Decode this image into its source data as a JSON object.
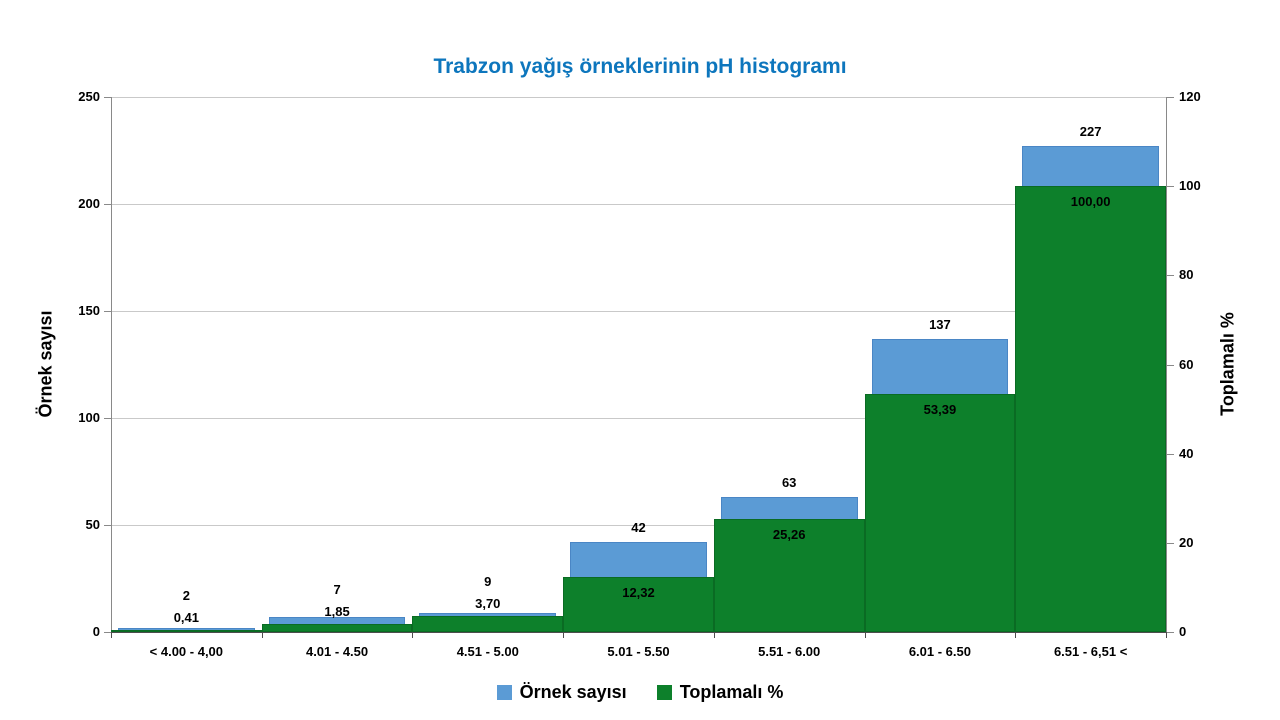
{
  "title": "Trabzon yağış örneklerinin pH histogramı",
  "title_color": "#0D76BD",
  "chart_data": {
    "type": "bar",
    "title": "Trabzon yağış örneklerinin pH histogramı",
    "categories": [
      "< 4.00 - 4,00",
      "4.01 - 4.50",
      "4.51 - 5.00",
      "5.01 - 5.50",
      "5.51 - 6.00",
      "6.01 - 6.50",
      "6.51 - 6,51 <"
    ],
    "series": [
      {
        "name": "Örnek sayısı",
        "type": "bar",
        "axis": "left",
        "color": "#5B9BD5",
        "border_color": "#4A86C5",
        "values": [
          2,
          7,
          9,
          42,
          63,
          137,
          227
        ],
        "labels": [
          "2",
          "7",
          "9",
          "42",
          "63",
          "137",
          "227"
        ]
      },
      {
        "name": "Toplamalı %",
        "type": "bar",
        "axis": "right",
        "color": "#0D802B",
        "border_color": "#0A6B23",
        "values": [
          0.41,
          1.85,
          3.7,
          12.32,
          25.26,
          53.39,
          100.0
        ],
        "labels": [
          "0,41",
          "1,85",
          "3,70",
          "12,32",
          "25,26",
          "53,39",
          "100,00"
        ]
      }
    ],
    "left_axis": {
      "title": "Örnek sayısı",
      "min": 0,
      "max": 250,
      "ticks": [
        0,
        50,
        100,
        150,
        200,
        250
      ]
    },
    "right_axis": {
      "title": "Toplamalı %",
      "min": 0,
      "max": 120,
      "ticks": [
        0,
        20,
        40,
        60,
        80,
        100,
        120
      ]
    },
    "legend": {
      "position": "bottom",
      "items": [
        "Örnek sayısı",
        "Toplamalı %"
      ]
    },
    "grid": {
      "horizontal": true,
      "vertical": false
    }
  },
  "colors": {
    "grid": "#C9C9C9",
    "axis": "#898989",
    "x_axis_line": "#4D4D4D",
    "label": "#000000",
    "background": "#FFFFFF"
  }
}
